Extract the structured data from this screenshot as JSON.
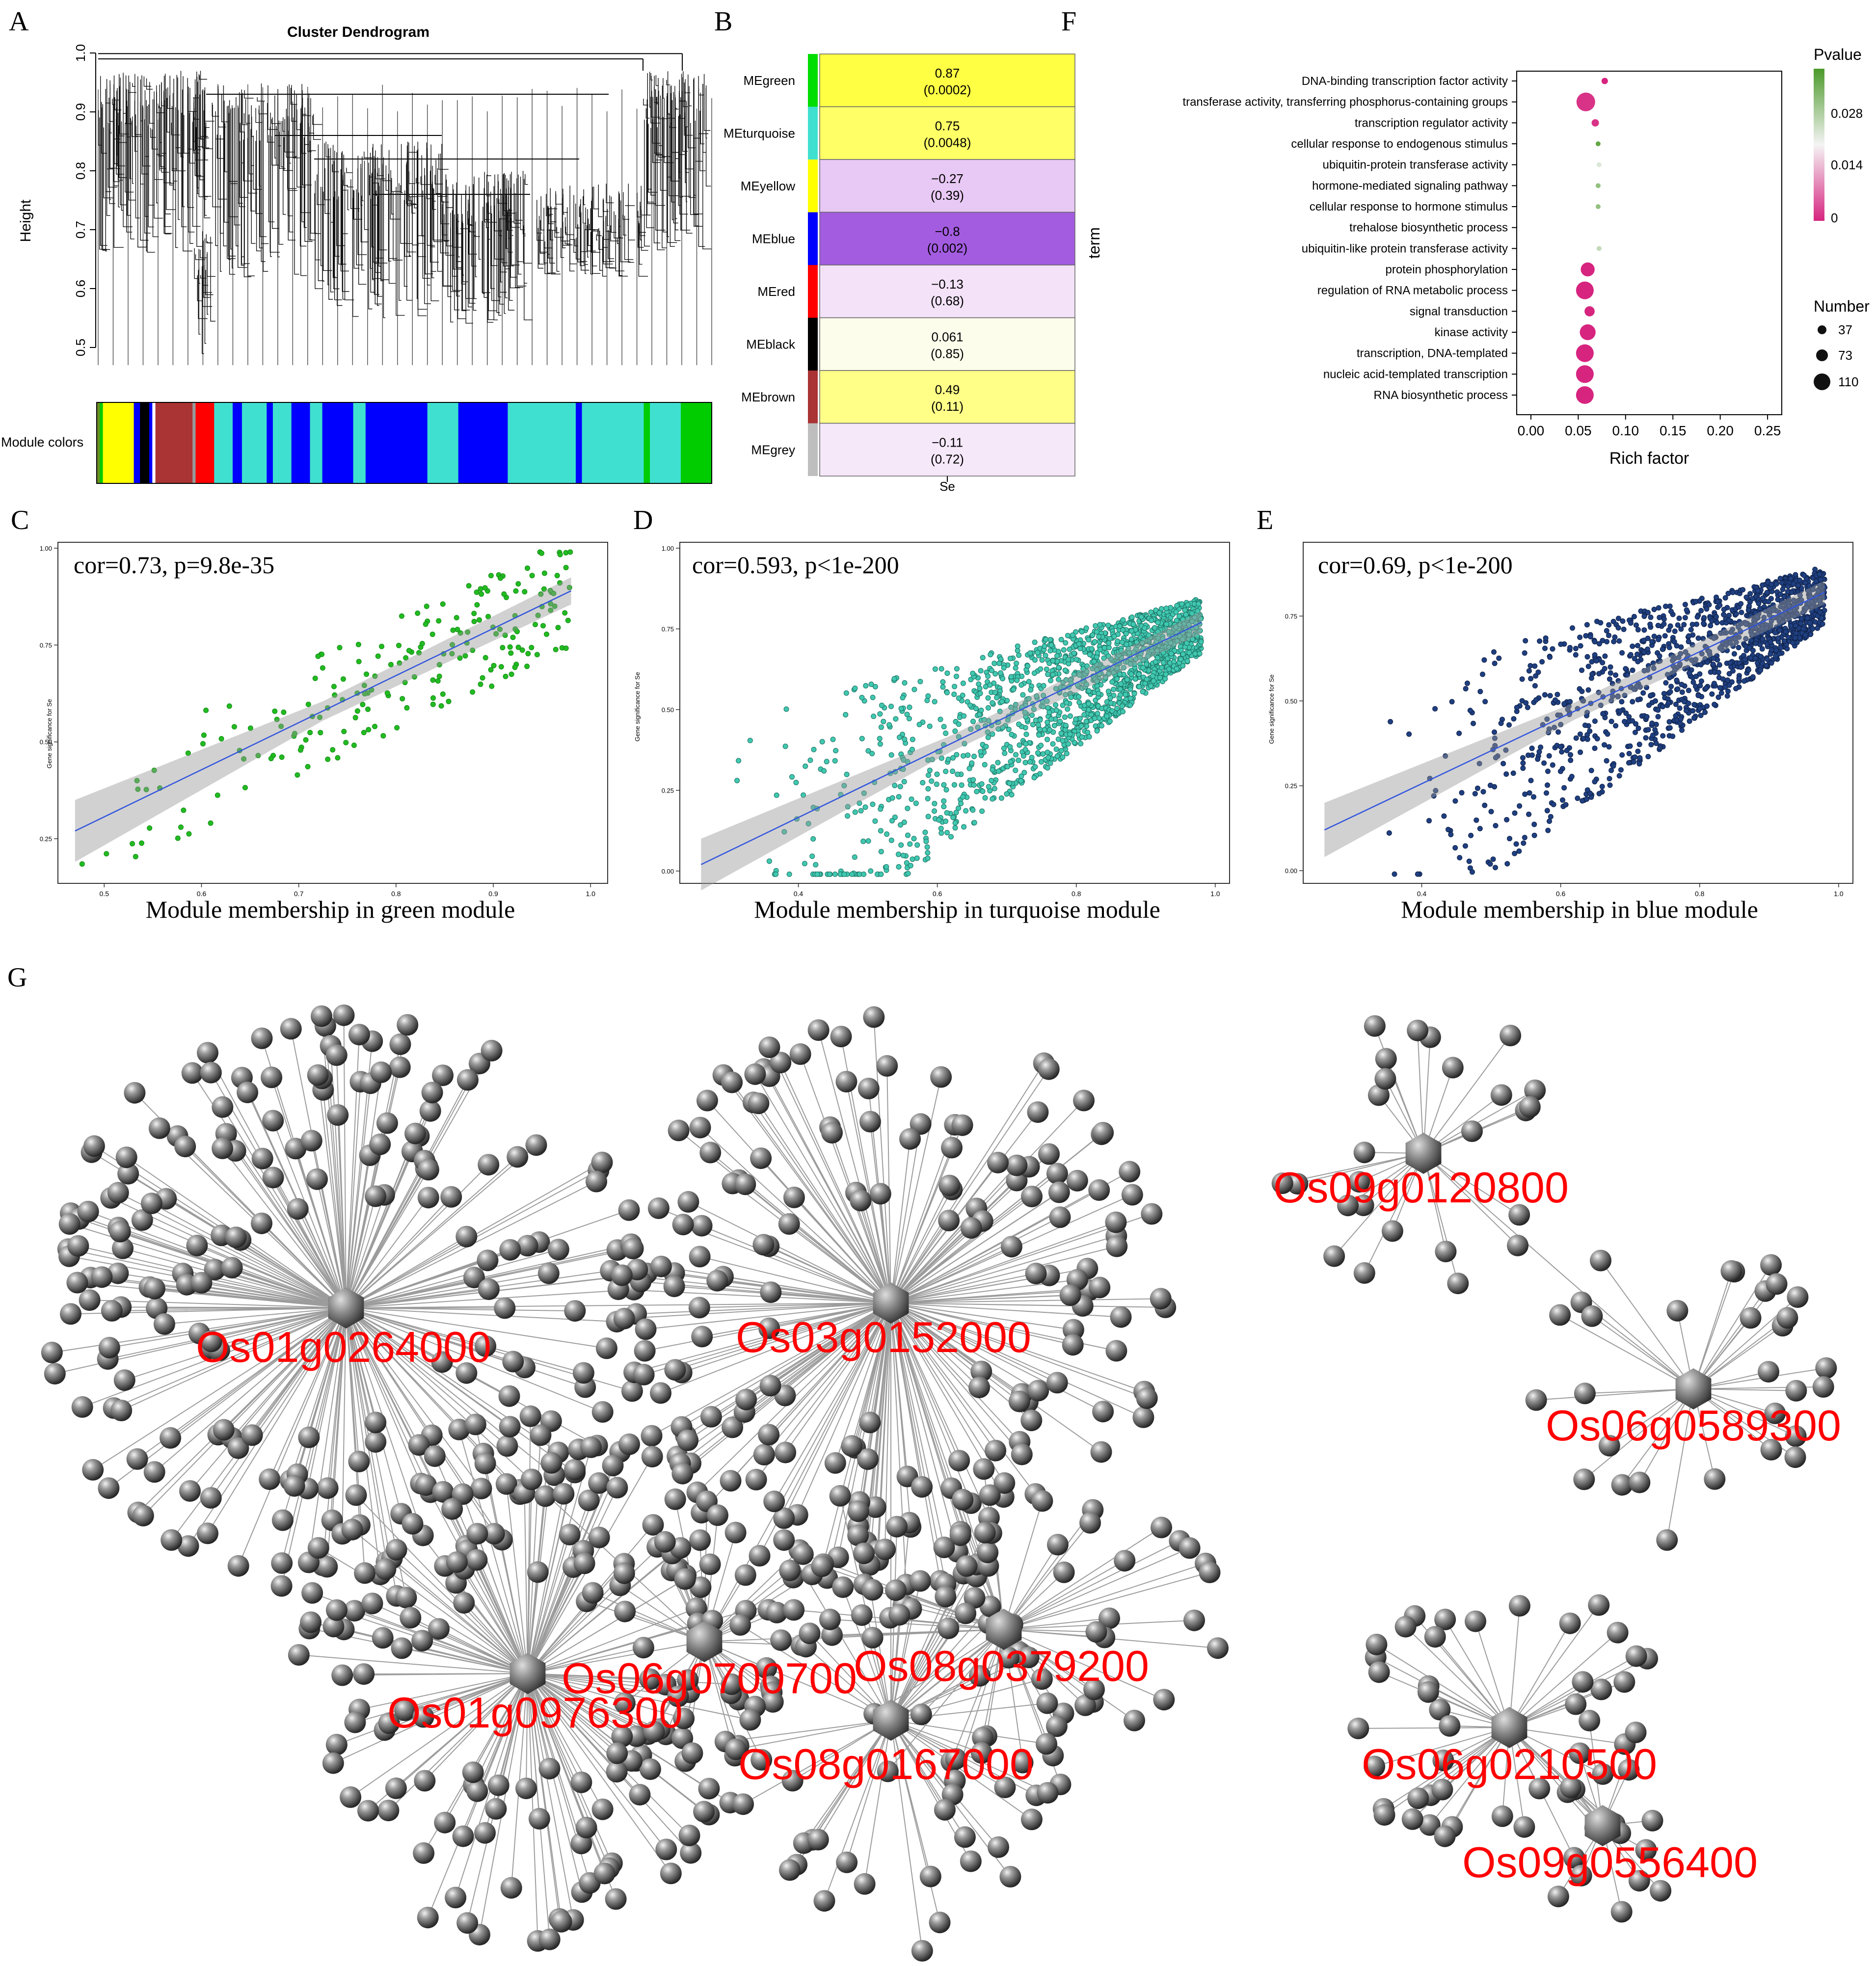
{
  "panels": {
    "A": {
      "letter": "A",
      "title": "Cluster Dendrogram",
      "ylabel": "Height",
      "yticks": [
        "1.0",
        "0.9",
        "0.8",
        "0.7",
        "0.6",
        "0.5"
      ],
      "colors_label": "Module colors",
      "color_bands": [
        {
          "color": "#6b8e23",
          "weight": 1
        },
        {
          "color": "#00cc00",
          "weight": 1
        },
        {
          "color": "#ffff00",
          "weight": 10
        },
        {
          "color": "#0000ff",
          "weight": 2
        },
        {
          "color": "#000000",
          "weight": 3
        },
        {
          "color": "#0000ff",
          "weight": 1
        },
        {
          "color": "#ffffff",
          "weight": 1
        },
        {
          "color": "#aa3333",
          "weight": 12
        },
        {
          "color": "#999999",
          "weight": 1
        },
        {
          "color": "#ff0000",
          "weight": 6
        },
        {
          "color": "#40e0d0",
          "weight": 6
        },
        {
          "color": "#0000ff",
          "weight": 3
        },
        {
          "color": "#40e0d0",
          "weight": 8
        },
        {
          "color": "#0000ff",
          "weight": 2
        },
        {
          "color": "#40e0d0",
          "weight": 6
        },
        {
          "color": "#0000ff",
          "weight": 6
        },
        {
          "color": "#40e0d0",
          "weight": 4
        },
        {
          "color": "#0000ff",
          "weight": 10
        },
        {
          "color": "#40e0d0",
          "weight": 4
        },
        {
          "color": "#0000ff",
          "weight": 20
        },
        {
          "color": "#40e0d0",
          "weight": 10
        },
        {
          "color": "#0000ff",
          "weight": 16
        },
        {
          "color": "#40e0d0",
          "weight": 22
        },
        {
          "color": "#0000ff",
          "weight": 2
        },
        {
          "color": "#40e0d0",
          "weight": 20
        },
        {
          "color": "#00cc00",
          "weight": 2
        },
        {
          "color": "#40e0d0",
          "weight": 10
        },
        {
          "color": "#00cc00",
          "weight": 10
        }
      ]
    },
    "B": {
      "letter": "B",
      "xlabel": "Se",
      "rows": [
        {
          "name": "MEgreen",
          "value": "0.87",
          "p": "(0.0002)",
          "swatch": "#00dd00",
          "fill": "#ffff44"
        },
        {
          "name": "MEturquoise",
          "value": "0.75",
          "p": "(0.0048)",
          "swatch": "#40e0d0",
          "fill": "#ffff66"
        },
        {
          "name": "MEyellow",
          "value": "−0.27",
          "p": "(0.39)",
          "swatch": "#ffff00",
          "fill": "#e8c8f4"
        },
        {
          "name": "MEblue",
          "value": "−0.8",
          "p": "(0.002)",
          "swatch": "#0000ff",
          "fill": "#a35ce0"
        },
        {
          "name": "MEred",
          "value": "−0.13",
          "p": "(0.68)",
          "swatch": "#ff0000",
          "fill": "#f3e2f8"
        },
        {
          "name": "MEblack",
          "value": "0.061",
          "p": "(0.85)",
          "swatch": "#000000",
          "fill": "#fdfdec"
        },
        {
          "name": "MEbrown",
          "value": "0.49",
          "p": "(0.11)",
          "swatch": "#aa3333",
          "fill": "#ffff88"
        },
        {
          "name": "MEgrey",
          "value": "−0.11",
          "p": "(0.72)",
          "swatch": "#bebebe",
          "fill": "#f5e8f9"
        }
      ]
    },
    "F": {
      "letter": "F",
      "ylabel": "term",
      "xlabel": "Rich factor",
      "xticks": [
        "0.00",
        "0.05",
        "0.10",
        "0.15",
        "0.20",
        "0.25"
      ],
      "legend_p_title": "Pvalue",
      "legend_p_ticks": [
        "0.028",
        "0.014",
        "0"
      ],
      "legend_n_title": "Number",
      "legend_n_ticks": [
        "37",
        "73",
        "110"
      ],
      "terms": [
        {
          "term": "DNA-binding transcription factor activity",
          "rich": 0.078,
          "p": 0.0,
          "n": 45
        },
        {
          "term": "transferase activity, transferring phosphorus-containing groups",
          "rich": 0.058,
          "p": 0.001,
          "n": 110
        },
        {
          "term": "transcription regulator activity",
          "rich": 0.068,
          "p": 0.001,
          "n": 50
        },
        {
          "term": "cellular response to endogenous stimulus",
          "rich": 0.071,
          "p": 0.026,
          "n": 37
        },
        {
          "term": "ubiquitin-protein transferase activity",
          "rich": 0.072,
          "p": 0.016,
          "n": 37
        },
        {
          "term": "hormone-mediated signaling pathway",
          "rich": 0.071,
          "p": 0.022,
          "n": 37
        },
        {
          "term": "cellular response to hormone stimulus",
          "rich": 0.071,
          "p": 0.022,
          "n": 37
        },
        {
          "term": "trehalose biosynthetic process",
          "rich": 0.0,
          "p": 0.0,
          "n": 0
        },
        {
          "term": "ubiquitin-like protein transferase activity",
          "rich": 0.072,
          "p": 0.018,
          "n": 37
        },
        {
          "term": "protein phosphorylation",
          "rich": 0.06,
          "p": 0.0,
          "n": 85
        },
        {
          "term": "regulation of RNA metabolic process",
          "rich": 0.057,
          "p": 0.0,
          "n": 105
        },
        {
          "term": "signal transduction",
          "rich": 0.062,
          "p": 0.0,
          "n": 65
        },
        {
          "term": "kinase activity",
          "rich": 0.06,
          "p": 0.0,
          "n": 95
        },
        {
          "term": "transcription, DNA-templated",
          "rich": 0.057,
          "p": 0.0,
          "n": 105
        },
        {
          "term": "nucleic acid-templated transcription",
          "rich": 0.057,
          "p": 0.0,
          "n": 105
        },
        {
          "term": "RNA biosynthetic process",
          "rich": 0.057,
          "p": 0.0,
          "n": 105
        }
      ]
    },
    "C": {
      "letter": "C",
      "annotation": "cor=0.73, p=9.8e-35",
      "xlabel": "Module membership in green module",
      "ylabel": "Gene significance for Se",
      "color": "#22bb22",
      "stroke": "#118811",
      "xlim": [
        0.46,
        1.01
      ],
      "ylim": [
        0.15,
        1.0
      ],
      "xticks": [
        0.5,
        0.6,
        0.7,
        0.8,
        0.9,
        1.0
      ],
      "xtick_labels": [
        "0.5",
        "0.6",
        "0.7",
        "0.8",
        "0.9",
        "1.0"
      ],
      "yticks": [
        0.25,
        0.5,
        0.75,
        1.0
      ],
      "ytick_labels": [
        "0.25",
        "0.50",
        "0.75",
        "1.00"
      ],
      "fit": [
        [
          0.47,
          0.27
        ],
        [
          0.98,
          0.89
        ]
      ],
      "n": 210,
      "seed": 11,
      "shape": "green"
    },
    "D": {
      "letter": "D",
      "annotation": "cor=0.593, p<1e-200",
      "xlabel": "Module membership in turquoise module",
      "ylabel": "Gene significance for Se",
      "color": "#40c8b0",
      "stroke": "#1a6e60",
      "xlim": [
        0.24,
        1.01
      ],
      "ylim": [
        -0.02,
        1.0
      ],
      "xticks": [
        0.4,
        0.6,
        0.8,
        1.0
      ],
      "xtick_labels": [
        "0.4",
        "0.6",
        "0.8",
        "1.0"
      ],
      "yticks": [
        0.0,
        0.25,
        0.5,
        0.75,
        1.0
      ],
      "ytick_labels": [
        "0.00",
        "0.25",
        "0.50",
        "0.75",
        "1.00"
      ],
      "fit": [
        [
          0.26,
          0.02
        ],
        [
          0.98,
          0.77
        ]
      ],
      "n": 1600,
      "seed": 23,
      "shape": "wedge"
    },
    "E": {
      "letter": "E",
      "annotation": "cor=0.69, p<1e-200",
      "xlabel": "Module membership in blue module",
      "ylabel": "Gene significance for Se",
      "color": "#1f3f80",
      "stroke": "#0e1f44",
      "xlim": [
        0.24,
        1.01
      ],
      "ylim": [
        -0.02,
        0.95
      ],
      "xticks": [
        0.4,
        0.6,
        0.8,
        1.0
      ],
      "xtick_labels": [
        "0.4",
        "0.6",
        "0.8",
        "1.0"
      ],
      "yticks": [
        0.0,
        0.25,
        0.5,
        0.75
      ],
      "ytick_labels": [
        "0.00",
        "0.25",
        "0.50",
        "0.75"
      ],
      "fit": [
        [
          0.26,
          0.12
        ],
        [
          0.98,
          0.82
        ]
      ],
      "n": 1300,
      "seed": 37,
      "shape": "wedge"
    },
    "G": {
      "letter": "G",
      "hubs": [
        {
          "id": "Os01g0264000",
          "leaves": 210,
          "label_color": "#ff0000"
        },
        {
          "id": "Os03g0152000",
          "leaves": 190,
          "label_color": "#ff0000"
        },
        {
          "id": "Os09g0120800",
          "leaves": 26,
          "label_color": "#ff0000"
        },
        {
          "id": "Os06g0589300",
          "leaves": 30,
          "label_color": "#ff0000"
        },
        {
          "id": "Os06g0700700",
          "leaves": 40,
          "label_color": "#ff0000"
        },
        {
          "id": "Os08g0379200",
          "leaves": 50,
          "label_color": "#ff0000"
        },
        {
          "id": "Os01g0976300",
          "leaves": 150,
          "label_color": "#ff0000"
        },
        {
          "id": "Os08g0167000",
          "leaves": 60,
          "label_color": "#ff0000"
        },
        {
          "id": "Os06g0210500",
          "leaves": 44,
          "label_color": "#ff0000"
        },
        {
          "id": "Os09g0556400",
          "leaves": 14,
          "label_color": "#ff0000"
        }
      ]
    }
  }
}
